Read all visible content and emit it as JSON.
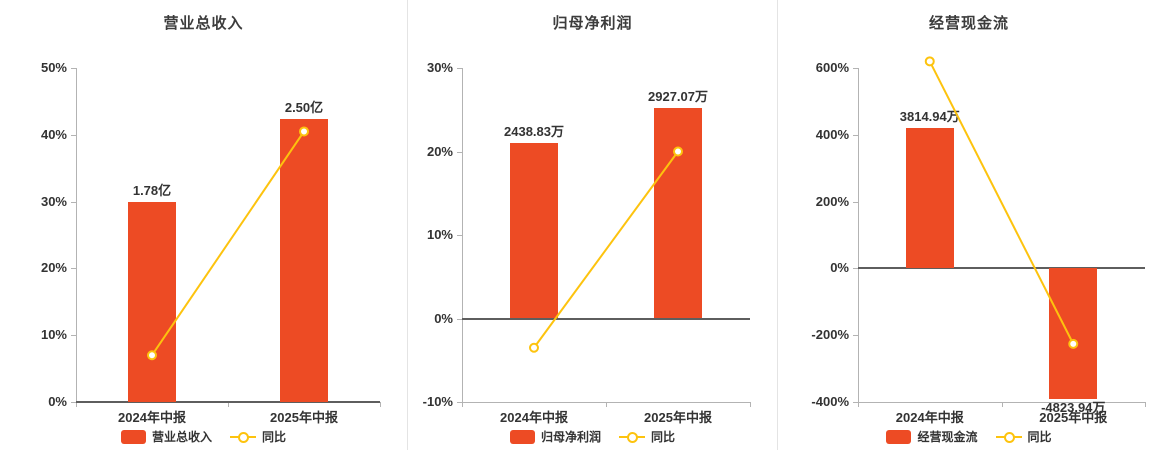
{
  "page": {
    "background": "#ffffff"
  },
  "colors": {
    "bar": "#ed4b24",
    "line": "#fdc30e",
    "title": "#3c3c3c",
    "axis_label": "#333333",
    "zero_axis": "#5e5e5e",
    "axis_line": "#b3b3b3",
    "divider": "#e4e4e4",
    "marker_fill": "#ffffff"
  },
  "chart_data": [
    {
      "type": "bar",
      "title": "营业总收入",
      "categories": [
        "2024年中报",
        "2025年中报"
      ],
      "bar_series": {
        "name": "营业总收入",
        "display_values": [
          "1.78亿",
          "2.50亿"
        ],
        "plotted_heights_pct": [
          30,
          42.3
        ]
      },
      "line_series": {
        "name": "同比",
        "values_pct": [
          7,
          40.5
        ]
      },
      "ylim": [
        0,
        50
      ],
      "yticks": [
        0,
        10,
        20,
        30,
        40,
        50
      ],
      "ytick_suffix": "%",
      "legend_position": "bottom",
      "grid": false
    },
    {
      "type": "bar",
      "title": "归母净利润",
      "categories": [
        "2024年中报",
        "2025年中报"
      ],
      "bar_series": {
        "name": "归母净利润",
        "display_values": [
          "2438.83万",
          "2927.07万"
        ],
        "plotted_heights_pct": [
          21,
          25.2
        ]
      },
      "line_series": {
        "name": "同比",
        "values_pct": [
          -3.5,
          20
        ]
      },
      "ylim": [
        -10,
        30
      ],
      "yticks": [
        -10,
        0,
        10,
        20,
        30
      ],
      "ytick_suffix": "%",
      "legend_position": "bottom",
      "grid": false
    },
    {
      "type": "bar",
      "title": "经营现金流",
      "categories": [
        "2024年中报",
        "2025年中报"
      ],
      "bar_series": {
        "name": "经营现金流",
        "display_values": [
          "3814.94万",
          "-4823.94万"
        ],
        "plotted_heights_pct": [
          420,
          -390
        ]
      },
      "line_series": {
        "name": "同比",
        "values_pct": [
          620,
          -226
        ]
      },
      "ylim": [
        -400,
        600
      ],
      "yticks": [
        -400,
        -200,
        0,
        200,
        400,
        600
      ],
      "ytick_suffix": "%",
      "legend_position": "bottom",
      "grid": false
    }
  ]
}
